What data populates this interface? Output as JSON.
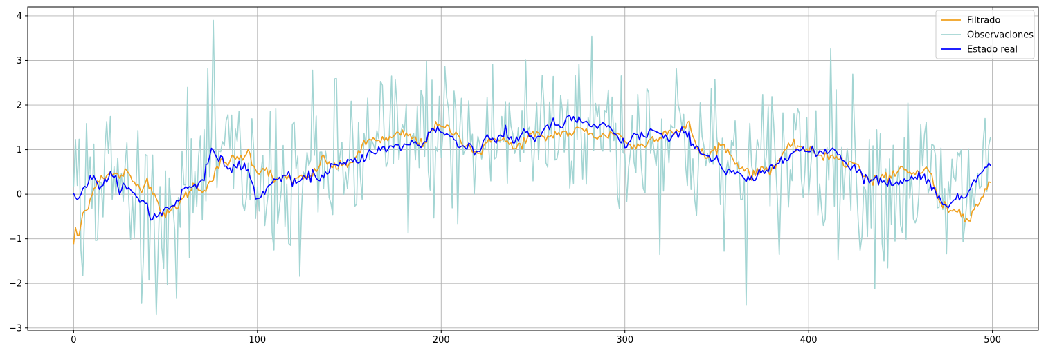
{
  "chart_data": {
    "type": "line",
    "title": "",
    "xlabel": "",
    "ylabel": "",
    "xlim": [
      -25,
      525
    ],
    "ylim": [
      -3.05,
      4.2
    ],
    "xticks": [
      0,
      100,
      200,
      300,
      400,
      500
    ],
    "yticks": [
      -3,
      -2,
      -1,
      0,
      1,
      2,
      3,
      4
    ],
    "grid": true,
    "legend_position": "top-right",
    "n_points": 500,
    "series": [
      {
        "name": "Filtrado",
        "color": "#f0a01e",
        "anchors": [
          [
            0,
            -1.1
          ],
          [
            1,
            -0.8
          ],
          [
            3,
            -1.0
          ],
          [
            5,
            -0.4
          ],
          [
            8,
            -0.35
          ],
          [
            10,
            0.1
          ],
          [
            15,
            0.4
          ],
          [
            20,
            0.45
          ],
          [
            25,
            0.4
          ],
          [
            28,
            0.5
          ],
          [
            32,
            0.3
          ],
          [
            36,
            0.15
          ],
          [
            40,
            0.3
          ],
          [
            44,
            0.05
          ],
          [
            47,
            -0.35
          ],
          [
            50,
            -0.5
          ],
          [
            55,
            -0.3
          ],
          [
            60,
            -0.1
          ],
          [
            65,
            0.2
          ],
          [
            70,
            0.1
          ],
          [
            75,
            0.3
          ],
          [
            80,
            0.7
          ],
          [
            85,
            0.75
          ],
          [
            90,
            0.8
          ],
          [
            95,
            0.95
          ],
          [
            100,
            0.5
          ],
          [
            105,
            0.6
          ],
          [
            110,
            0.25
          ],
          [
            115,
            0.4
          ],
          [
            120,
            0.3
          ],
          [
            125,
            0.35
          ],
          [
            130,
            0.4
          ],
          [
            135,
            0.8
          ],
          [
            140,
            0.65
          ],
          [
            145,
            0.6
          ],
          [
            150,
            0.7
          ],
          [
            155,
            0.9
          ],
          [
            160,
            1.2
          ],
          [
            165,
            1.25
          ],
          [
            170,
            1.2
          ],
          [
            175,
            1.3
          ],
          [
            180,
            1.35
          ],
          [
            185,
            1.25
          ],
          [
            190,
            1.1
          ],
          [
            195,
            1.5
          ],
          [
            200,
            1.5
          ],
          [
            205,
            1.45
          ],
          [
            210,
            1.25
          ],
          [
            215,
            1.1
          ],
          [
            220,
            0.9
          ],
          [
            225,
            1.1
          ],
          [
            230,
            1.3
          ],
          [
            235,
            1.2
          ],
          [
            240,
            1.0
          ],
          [
            245,
            1.2
          ],
          [
            250,
            1.35
          ],
          [
            255,
            1.25
          ],
          [
            260,
            1.3
          ],
          [
            265,
            1.4
          ],
          [
            270,
            1.35
          ],
          [
            275,
            1.45
          ],
          [
            280,
            1.4
          ],
          [
            285,
            1.3
          ],
          [
            290,
            1.3
          ],
          [
            295,
            1.4
          ],
          [
            300,
            1.2
          ],
          [
            305,
            1.05
          ],
          [
            310,
            1.1
          ],
          [
            315,
            1.25
          ],
          [
            320,
            1.35
          ],
          [
            325,
            1.45
          ],
          [
            330,
            1.4
          ],
          [
            335,
            1.55
          ],
          [
            340,
            1.0
          ],
          [
            345,
            0.8
          ],
          [
            350,
            1.1
          ],
          [
            355,
            1.05
          ],
          [
            360,
            0.7
          ],
          [
            365,
            0.6
          ],
          [
            370,
            0.4
          ],
          [
            375,
            0.6
          ],
          [
            380,
            0.55
          ],
          [
            385,
            0.85
          ],
          [
            390,
            1.05
          ],
          [
            395,
            1.1
          ],
          [
            400,
            0.95
          ],
          [
            405,
            0.9
          ],
          [
            410,
            0.85
          ],
          [
            415,
            0.9
          ],
          [
            420,
            0.6
          ],
          [
            425,
            0.75
          ],
          [
            430,
            0.4
          ],
          [
            435,
            0.25
          ],
          [
            440,
            0.45
          ],
          [
            445,
            0.3
          ],
          [
            450,
            0.6
          ],
          [
            455,
            0.45
          ],
          [
            460,
            0.5
          ],
          [
            465,
            0.6
          ],
          [
            470,
            -0.05
          ],
          [
            475,
            -0.35
          ],
          [
            480,
            -0.3
          ],
          [
            485,
            -0.55
          ],
          [
            490,
            -0.35
          ],
          [
            495,
            0.0
          ],
          [
            500,
            0.3
          ]
        ]
      },
      {
        "name": "Observaciones",
        "color": "#a3d5d3",
        "noisy": true,
        "noise_sd": 0.95,
        "base": "Estado real"
      },
      {
        "name": "Estado real",
        "color": "#0000ff",
        "anchors": [
          [
            0,
            0.0
          ],
          [
            3,
            -0.05
          ],
          [
            6,
            0.2
          ],
          [
            10,
            0.35
          ],
          [
            15,
            0.2
          ],
          [
            20,
            0.4
          ],
          [
            25,
            0.2
          ],
          [
            30,
            0.1
          ],
          [
            35,
            -0.1
          ],
          [
            40,
            -0.2
          ],
          [
            42,
            -0.55
          ],
          [
            45,
            -0.5
          ],
          [
            50,
            -0.35
          ],
          [
            55,
            -0.2
          ],
          [
            60,
            0.1
          ],
          [
            65,
            0.2
          ],
          [
            70,
            0.35
          ],
          [
            75,
            0.9
          ],
          [
            80,
            0.85
          ],
          [
            85,
            0.5
          ],
          [
            90,
            0.7
          ],
          [
            95,
            0.5
          ],
          [
            100,
            -0.15
          ],
          [
            105,
            0.15
          ],
          [
            110,
            0.3
          ],
          [
            115,
            0.45
          ],
          [
            120,
            0.25
          ],
          [
            125,
            0.3
          ],
          [
            130,
            0.45
          ],
          [
            135,
            0.35
          ],
          [
            140,
            0.65
          ],
          [
            145,
            0.6
          ],
          [
            150,
            0.75
          ],
          [
            155,
            0.7
          ],
          [
            160,
            0.95
          ],
          [
            165,
            1.0
          ],
          [
            170,
            1.0
          ],
          [
            175,
            1.05
          ],
          [
            180,
            1.1
          ],
          [
            185,
            1.15
          ],
          [
            190,
            1.1
          ],
          [
            195,
            1.5
          ],
          [
            200,
            1.4
          ],
          [
            205,
            1.3
          ],
          [
            210,
            1.05
          ],
          [
            215,
            1.15
          ],
          [
            220,
            0.9
          ],
          [
            225,
            1.35
          ],
          [
            230,
            1.2
          ],
          [
            235,
            1.35
          ],
          [
            240,
            1.15
          ],
          [
            245,
            1.45
          ],
          [
            250,
            1.25
          ],
          [
            255,
            1.35
          ],
          [
            260,
            1.6
          ],
          [
            265,
            1.5
          ],
          [
            270,
            1.7
          ],
          [
            275,
            1.65
          ],
          [
            280,
            1.6
          ],
          [
            285,
            1.45
          ],
          [
            290,
            1.55
          ],
          [
            295,
            1.3
          ],
          [
            300,
            1.1
          ],
          [
            305,
            1.3
          ],
          [
            310,
            1.3
          ],
          [
            315,
            1.45
          ],
          [
            320,
            1.3
          ],
          [
            325,
            1.2
          ],
          [
            330,
            1.4
          ],
          [
            335,
            1.3
          ],
          [
            340,
            1.0
          ],
          [
            345,
            0.85
          ],
          [
            350,
            0.8
          ],
          [
            355,
            0.45
          ],
          [
            360,
            0.5
          ],
          [
            365,
            0.3
          ],
          [
            370,
            0.35
          ],
          [
            375,
            0.45
          ],
          [
            380,
            0.6
          ],
          [
            385,
            0.8
          ],
          [
            390,
            0.95
          ],
          [
            395,
            1.0
          ],
          [
            400,
            0.95
          ],
          [
            405,
            0.9
          ],
          [
            410,
            1.0
          ],
          [
            415,
            1.0
          ],
          [
            420,
            0.7
          ],
          [
            425,
            0.6
          ],
          [
            430,
            0.4
          ],
          [
            435,
            0.3
          ],
          [
            440,
            0.3
          ],
          [
            445,
            0.25
          ],
          [
            450,
            0.3
          ],
          [
            455,
            0.3
          ],
          [
            460,
            0.45
          ],
          [
            465,
            0.35
          ],
          [
            470,
            -0.1
          ],
          [
            475,
            -0.2
          ],
          [
            480,
            -0.15
          ],
          [
            485,
            -0.05
          ],
          [
            490,
            0.3
          ],
          [
            495,
            0.65
          ],
          [
            500,
            0.6
          ]
        ]
      }
    ]
  }
}
